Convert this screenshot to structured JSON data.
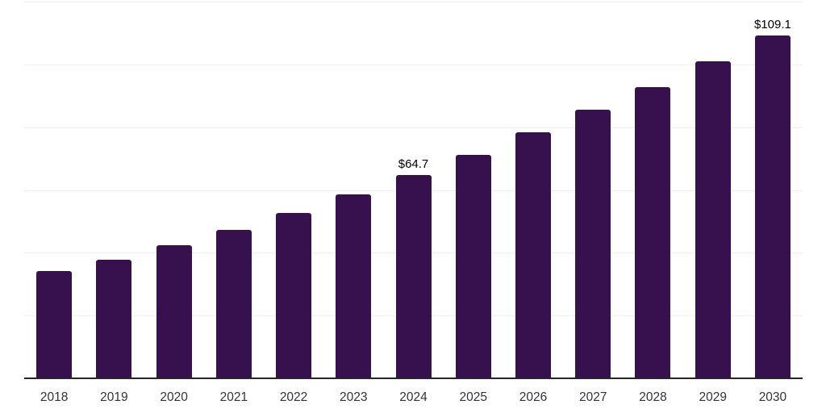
{
  "chart_data": {
    "type": "bar",
    "title": "",
    "xlabel": "",
    "ylabel": "",
    "categories": [
      "2018",
      "2019",
      "2020",
      "2021",
      "2022",
      "2023",
      "2024",
      "2025",
      "2026",
      "2027",
      "2028",
      "2029",
      "2030"
    ],
    "values": [
      34.1,
      37.7,
      42.3,
      47.2,
      52.7,
      58.5,
      64.7,
      71.3,
      78.3,
      85.5,
      92.8,
      100.9,
      109.1
    ],
    "data_labels": {
      "2024": "$64.7",
      "2030": "$109.1"
    },
    "ylim": [
      0,
      120
    ],
    "gridline_values": [
      20,
      40,
      60,
      80,
      100,
      120
    ],
    "grid": true,
    "legend": "none",
    "colors": {
      "bar": "#36114E",
      "gridline": "#f0f0f0",
      "axis_line": "#262626",
      "tick_label": "#333333",
      "data_label": "#000000",
      "background": "#ffffff"
    }
  }
}
